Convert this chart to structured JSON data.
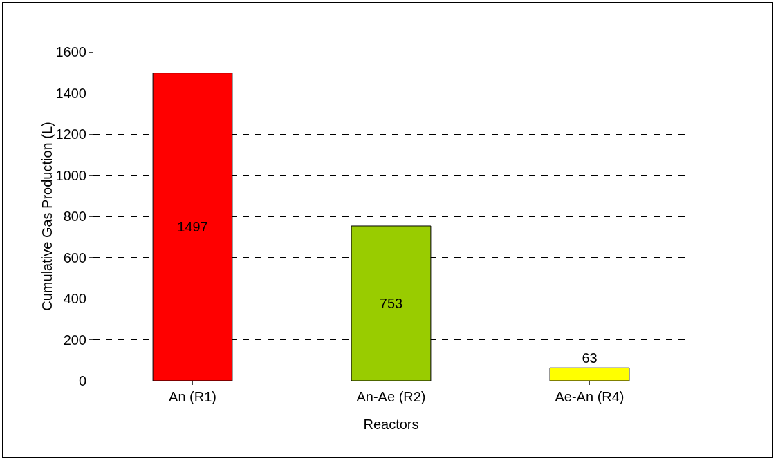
{
  "chart_data": {
    "type": "bar",
    "xlabel": "Reactors",
    "ylabel": "Cumulative Gas Production (L)",
    "categories": [
      "An (R1)",
      "An-Ae (R2)",
      "Ae-An (R4)"
    ],
    "values": [
      1497,
      753,
      63
    ],
    "colors": [
      "#ff0000",
      "#99cc00",
      "#ffff00"
    ],
    "ylim": [
      0,
      1600
    ],
    "yticks": [
      0,
      200,
      400,
      600,
      800,
      1000,
      1200,
      1400,
      1600
    ],
    "grid": "y",
    "line_style": "dashed",
    "data_labels": true,
    "legend": false
  }
}
